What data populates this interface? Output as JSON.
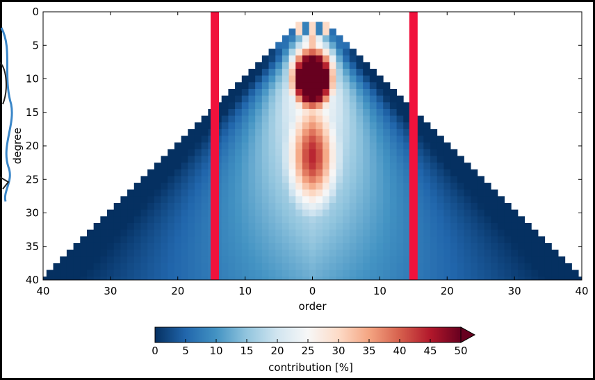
{
  "chart_data": {
    "type": "heatmap",
    "title": "",
    "xlabel": "order",
    "ylabel": "degree",
    "x_range": [
      -40,
      40
    ],
    "y_range": [
      0,
      40
    ],
    "y_inverted": true,
    "x_ticks": [
      {
        "value": -40,
        "label": "40"
      },
      {
        "value": -30,
        "label": "30"
      },
      {
        "value": -20,
        "label": "20"
      },
      {
        "value": -10,
        "label": "10"
      },
      {
        "value": 0,
        "label": "0"
      },
      {
        "value": 10,
        "label": "10"
      },
      {
        "value": 20,
        "label": "20"
      },
      {
        "value": 30,
        "label": "30"
      },
      {
        "value": 40,
        "label": "40"
      }
    ],
    "y_ticks": [
      {
        "value": 0,
        "label": "0"
      },
      {
        "value": 5,
        "label": "5"
      },
      {
        "value": 10,
        "label": "10"
      },
      {
        "value": 15,
        "label": "15"
      },
      {
        "value": 20,
        "label": "20"
      },
      {
        "value": 25,
        "label": "25"
      },
      {
        "value": 30,
        "label": "30"
      },
      {
        "value": 35,
        "label": "35"
      },
      {
        "value": 40,
        "label": "40"
      }
    ],
    "degree_min": 2,
    "degree_max": 40,
    "red_core_percent": 50,
    "vertical_markers": [
      {
        "order": -14.5,
        "color": "#f0123c"
      },
      {
        "order": 15,
        "color": "#f0123c"
      }
    ],
    "colorbar": {
      "label": "contribution [%]",
      "range": [
        0,
        50
      ],
      "ticks": [
        0,
        5,
        10,
        15,
        20,
        25,
        30,
        35,
        40,
        45,
        50
      ],
      "extend": "max",
      "colormap": "RdBu_r",
      "colors": [
        "#053061",
        "#2166ac",
        "#4393c3",
        "#92c5de",
        "#d1e5f0",
        "#f7f7f7",
        "#fddbc7",
        "#f4a582",
        "#d6604d",
        "#b2182b",
        "#67001f"
      ]
    }
  }
}
